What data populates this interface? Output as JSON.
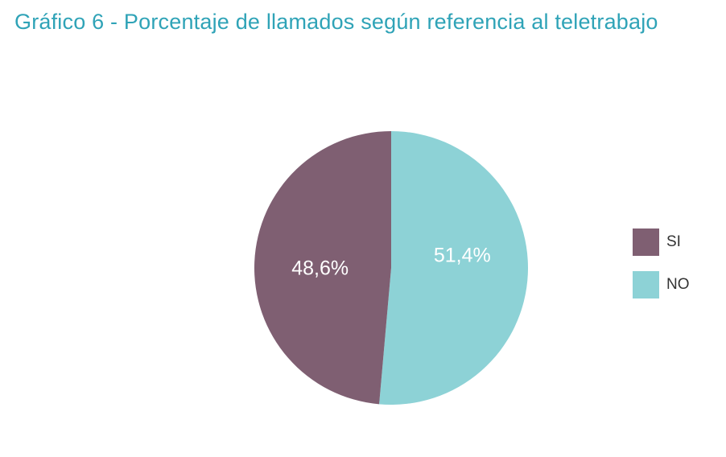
{
  "chart_data": {
    "type": "pie",
    "title": "Gráfico 6 - Porcentaje de llamados según referencia al teletrabajo",
    "categories": [
      "SI",
      "NO"
    ],
    "values": [
      48.6,
      51.4
    ],
    "value_labels": [
      "48,6%",
      "51,4%"
    ],
    "colors": [
      "#7F5F72",
      "#8DD2D6"
    ],
    "legend_position": "right",
    "title_color": "#2FA3B7"
  }
}
